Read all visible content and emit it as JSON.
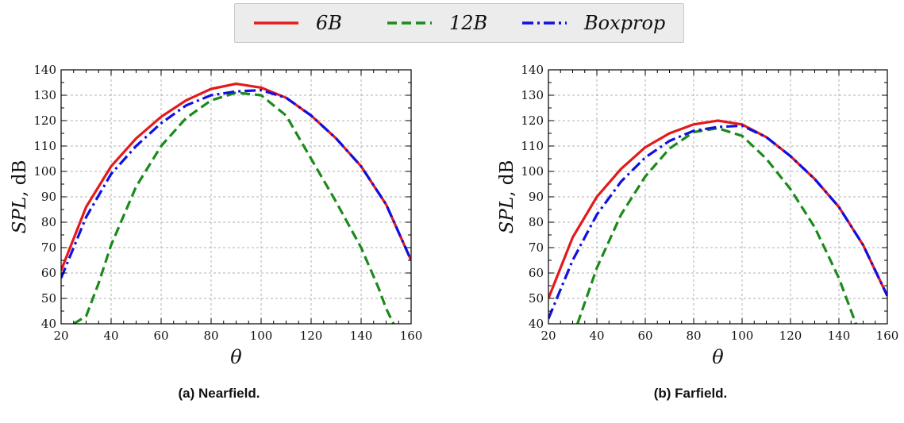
{
  "legend": {
    "entries": [
      {
        "label": "6B",
        "color": "#e31a1c",
        "dash": "solid"
      },
      {
        "label": "12B",
        "color": "#1a8a1a",
        "dash": "dashed"
      },
      {
        "label": "Boxprop",
        "color": "#1010e0",
        "dash": "dashdot"
      }
    ]
  },
  "captions": {
    "left": "(a) Nearfield.",
    "right": "(b) Farfield."
  },
  "chart_data": [
    {
      "type": "line",
      "xlabel": "θ",
      "ylabel": "SPL, dB",
      "xlim": [
        20,
        160
      ],
      "ylim": [
        40,
        140
      ],
      "xticks": [
        20,
        40,
        60,
        80,
        100,
        120,
        140,
        160
      ],
      "yticks": [
        40,
        50,
        60,
        70,
        80,
        90,
        100,
        110,
        120,
        130,
        140
      ],
      "grid": true,
      "series": [
        {
          "name": "6B",
          "color": "#e31a1c",
          "dash": "solid",
          "x": [
            20,
            30,
            40,
            50,
            60,
            70,
            80,
            90,
            100,
            110,
            120,
            130,
            140,
            150,
            160
          ],
          "y": [
            61,
            86,
            102,
            113,
            121.5,
            128,
            132.5,
            134.5,
            133,
            129,
            122,
            113,
            102,
            87,
            65
          ]
        },
        {
          "name": "12B",
          "color": "#1a8a1a",
          "dash": "dashed",
          "x": [
            25,
            30,
            35,
            40,
            50,
            60,
            70,
            80,
            90,
            100,
            110,
            120,
            130,
            140,
            147,
            150,
            153
          ],
          "y": [
            40,
            43,
            56,
            71,
            94,
            110,
            121,
            128,
            131,
            130,
            122,
            105,
            88,
            70,
            54,
            46,
            40
          ]
        },
        {
          "name": "Boxprop",
          "color": "#1010e0",
          "dash": "dashdot",
          "x": [
            20,
            30,
            40,
            50,
            60,
            70,
            80,
            90,
            100,
            110,
            120,
            130,
            140,
            150,
            160
          ],
          "y": [
            58,
            82,
            99,
            110,
            119,
            126,
            130,
            131.5,
            132,
            129,
            122,
            113,
            102,
            87,
            65
          ]
        }
      ]
    },
    {
      "type": "line",
      "xlabel": "θ",
      "ylabel": "SPL, dB",
      "xlim": [
        20,
        160
      ],
      "ylim": [
        40,
        140
      ],
      "xticks": [
        20,
        40,
        60,
        80,
        100,
        120,
        140,
        160
      ],
      "yticks": [
        40,
        50,
        60,
        70,
        80,
        90,
        100,
        110,
        120,
        130,
        140
      ],
      "grid": true,
      "series": [
        {
          "name": "6B",
          "color": "#e31a1c",
          "dash": "solid",
          "x": [
            20,
            30,
            40,
            50,
            60,
            70,
            80,
            90,
            100,
            110,
            120,
            130,
            140,
            150,
            160
          ],
          "y": [
            50,
            74,
            90,
            101,
            109.5,
            115,
            118.5,
            120,
            118.5,
            113.5,
            106,
            97,
            86,
            71,
            51
          ]
        },
        {
          "name": "12B",
          "color": "#1a8a1a",
          "dash": "dashed",
          "x": [
            32,
            40,
            50,
            60,
            70,
            80,
            90,
            100,
            110,
            120,
            130,
            140,
            147
          ],
          "y": [
            40,
            62,
            83,
            98,
            109,
            115.5,
            117,
            114,
            105,
            93,
            78,
            58,
            40
          ]
        },
        {
          "name": "Boxprop",
          "color": "#1010e0",
          "dash": "dashdot",
          "x": [
            20,
            30,
            40,
            50,
            60,
            70,
            80,
            90,
            100,
            110,
            120,
            130,
            140,
            150,
            160
          ],
          "y": [
            42,
            65,
            83,
            96,
            105.5,
            112,
            116,
            117.5,
            118,
            113.5,
            106,
            97,
            86,
            71,
            51
          ]
        }
      ]
    }
  ]
}
